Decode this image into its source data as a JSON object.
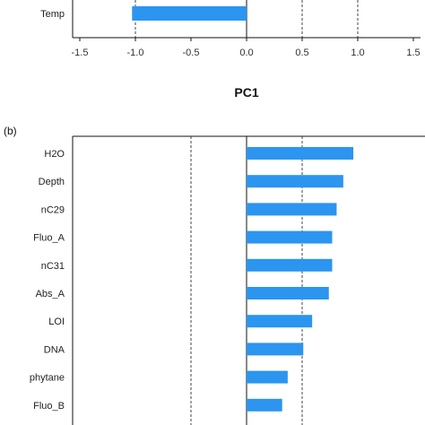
{
  "chart_data": [
    {
      "panel": "",
      "type": "bar",
      "orientation": "horizontal",
      "categories": [
        "Temp"
      ],
      "values": [
        -1.03
      ],
      "xlim": [
        -1.5,
        1.5
      ],
      "xticks": [
        "-1.5",
        "-1.0",
        "-0.5",
        "0.0",
        "0.5",
        "1.0",
        "1.5"
      ],
      "xlabel": "PC1",
      "reference_lines": [
        -1.0,
        0.5,
        1.0
      ],
      "bar_color": "#2b95f0"
    },
    {
      "panel": "(b)",
      "type": "bar",
      "orientation": "horizontal",
      "categories": [
        "H2O",
        "Depth",
        "nC29",
        "Fluo_A",
        "nC31",
        "Abs_A",
        "LOI",
        "DNA",
        "phytane",
        "Fluo_B"
      ],
      "values": [
        0.96,
        0.87,
        0.81,
        0.77,
        0.77,
        0.74,
        0.59,
        0.51,
        0.37,
        0.32
      ],
      "xlim": [
        -1.5,
        1.5
      ],
      "reference_lines": [
        -0.5,
        0.5
      ],
      "bar_color": "#2b95f0"
    }
  ]
}
